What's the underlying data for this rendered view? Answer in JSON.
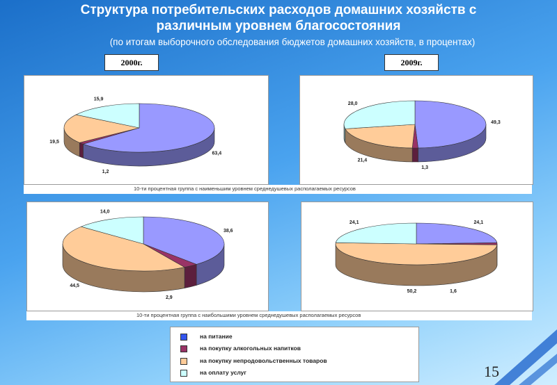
{
  "header": {
    "title": "Структура потребительских расходов домашних хозяйств с различным уровнем благосостояния",
    "subtitle": "(по итогам выборочного обследования бюджетов домашних хозяйств, в процентах)"
  },
  "years": [
    "2000г.",
    "2009г."
  ],
  "captions": {
    "low": "10-ти процентная группа с наименьшим уровнем среднедушевых располагаемых ресурсов",
    "high": "10-ти процентная группа с наибольшими уровнем среднедушевых располагаемых ресурсов"
  },
  "legend": [
    {
      "label": "на питание",
      "color": "#9999ff"
    },
    {
      "label": "на покупку алкогольных напитков",
      "color": "#993366"
    },
    {
      "label": "на покупку непродовольственных товаров",
      "color": "#ffcc99"
    },
    {
      "label": "на оплату услуг",
      "color": "#ccffff"
    }
  ],
  "page_number": "15",
  "chart_data": [
    {
      "type": "pie",
      "group": "low",
      "year": "2000г.",
      "labels": [
        "63,4",
        "1,2",
        "19,5",
        "15,9"
      ],
      "values": [
        63.4,
        1.2,
        19.5,
        15.9
      ]
    },
    {
      "type": "pie",
      "group": "low",
      "year": "2009г.",
      "labels": [
        "49,3",
        "1,3",
        "21,4",
        "28,0"
      ],
      "values": [
        49.3,
        1.3,
        21.4,
        28.0
      ]
    },
    {
      "type": "pie",
      "group": "high",
      "year": "2000г.",
      "labels": [
        "38,6",
        "2,9",
        "44,5",
        "14,0"
      ],
      "values": [
        38.6,
        2.9,
        44.5,
        14.0
      ]
    },
    {
      "type": "pie",
      "group": "high",
      "year": "2009г.",
      "labels": [
        "24,1",
        "1,6",
        "50,2",
        "24,1"
      ],
      "values": [
        24.1,
        1.6,
        50.2,
        24.1
      ]
    }
  ]
}
